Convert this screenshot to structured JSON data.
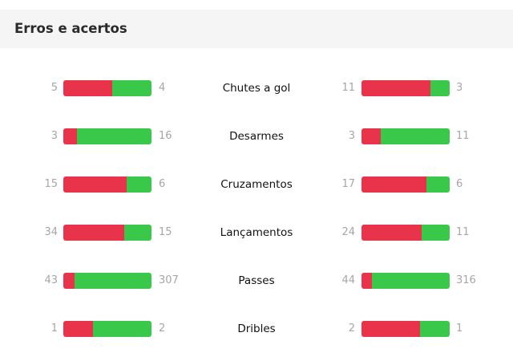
{
  "panel": {
    "title": "Erros e acertos"
  },
  "colors": {
    "errors": "#e8334a",
    "successes": "#3ac84a"
  },
  "stats": [
    {
      "label": "Chutes a gol",
      "left": {
        "errors": "5",
        "successes": "4"
      },
      "right": {
        "errors": "11",
        "successes": "3"
      }
    },
    {
      "label": "Desarmes",
      "left": {
        "errors": "3",
        "successes": "16"
      },
      "right": {
        "errors": "3",
        "successes": "11"
      }
    },
    {
      "label": "Cruzamentos",
      "left": {
        "errors": "15",
        "successes": "6"
      },
      "right": {
        "errors": "17",
        "successes": "6"
      }
    },
    {
      "label": "Lançamentos",
      "left": {
        "errors": "34",
        "successes": "15"
      },
      "right": {
        "errors": "24",
        "successes": "11"
      }
    },
    {
      "label": "Passes",
      "left": {
        "errors": "43",
        "successes": "307"
      },
      "right": {
        "errors": "44",
        "successes": "316"
      }
    },
    {
      "label": "Dribles",
      "left": {
        "errors": "1",
        "successes": "2"
      },
      "right": {
        "errors": "2",
        "successes": "1"
      }
    }
  ]
}
